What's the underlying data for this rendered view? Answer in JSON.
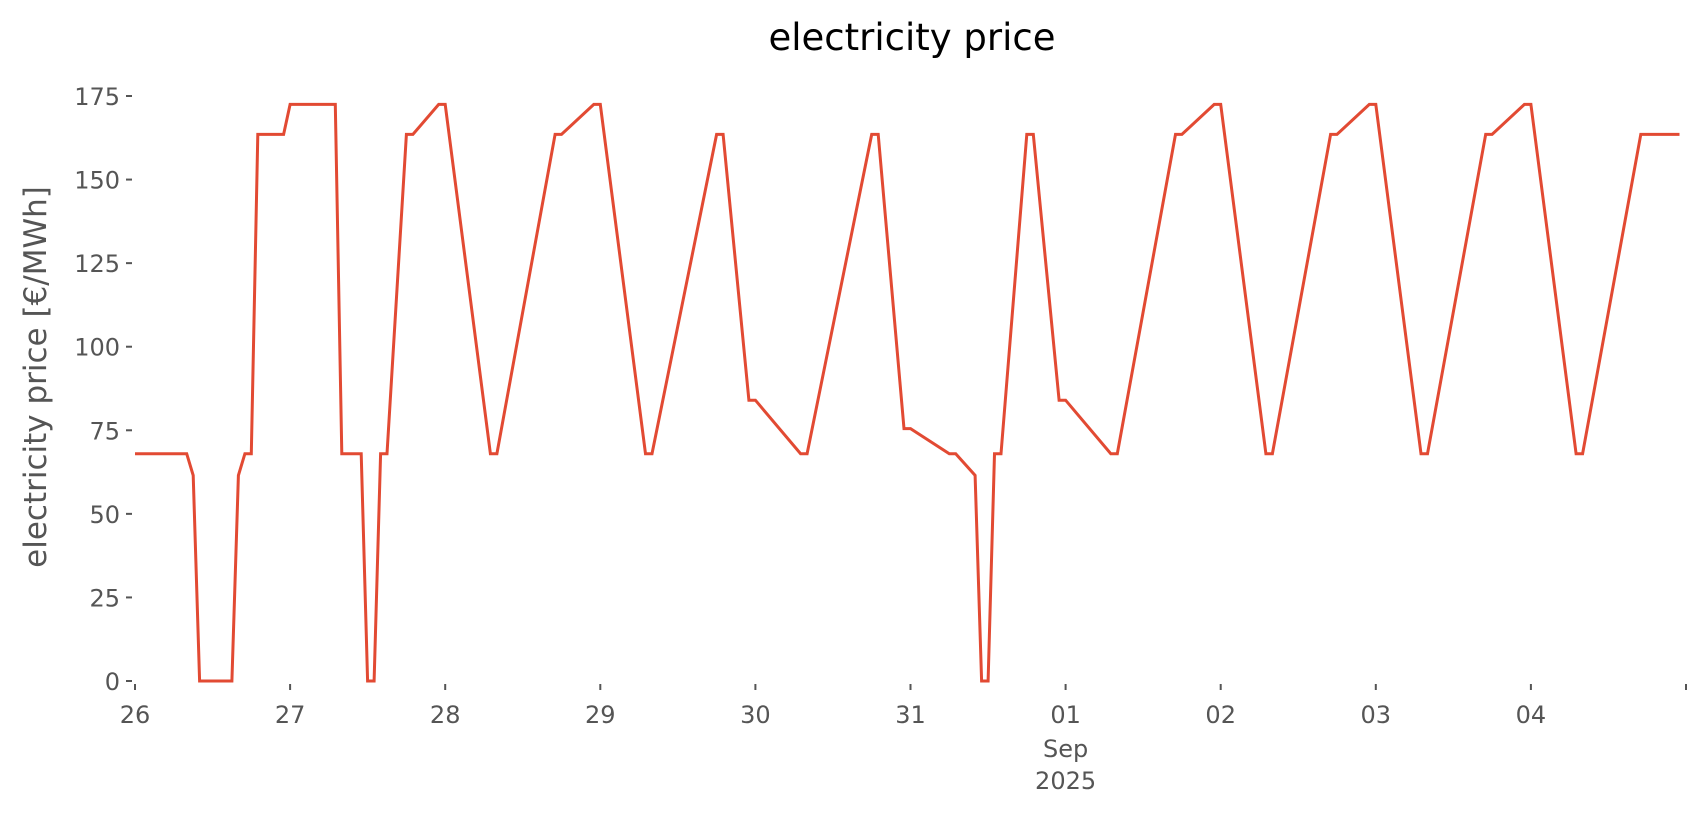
{
  "chart_data": {
    "type": "line",
    "title": "electricity price",
    "xlabel": "",
    "ylabel": "electricity price [€/MWh]",
    "ylim": [
      0,
      175
    ],
    "y_ticks": [
      0,
      25,
      50,
      75,
      100,
      125,
      150,
      175
    ],
    "x_range": [
      "2025-08-26 00:00",
      "2025-09-04 23:00"
    ],
    "x_ticks": [
      {
        "date": "2025-08-26",
        "label": "26"
      },
      {
        "date": "2025-08-27",
        "label": "27"
      },
      {
        "date": "2025-08-28",
        "label": "28"
      },
      {
        "date": "2025-08-29",
        "label": "29"
      },
      {
        "date": "2025-08-30",
        "label": "30"
      },
      {
        "date": "2025-08-31",
        "label": "31"
      },
      {
        "date": "2025-09-01",
        "label": "01",
        "sublabel": [
          "Sep",
          "2025"
        ]
      },
      {
        "date": "2025-09-02",
        "label": "02"
      },
      {
        "date": "2025-09-03",
        "label": "03"
      },
      {
        "date": "2025-09-04",
        "label": "04"
      }
    ],
    "grid": false,
    "line_color": "#e24a33",
    "series": [
      {
        "x": [
          "2025-08-26 00:00",
          "2025-08-26 08:00",
          "2025-08-26 09:00",
          "2025-08-26 10:00",
          "2025-08-26 15:00",
          "2025-08-26 16:00",
          "2025-08-26 17:00",
          "2025-08-26 18:00",
          "2025-08-26 19:00",
          "2025-08-26 23:00",
          "2025-08-27 00:00",
          "2025-08-27 07:00",
          "2025-08-27 08:00",
          "2025-08-27 11:00",
          "2025-08-27 12:00",
          "2025-08-27 13:00",
          "2025-08-27 14:00",
          "2025-08-27 15:00",
          "2025-08-27 18:00",
          "2025-08-27 19:00",
          "2025-08-27 23:00",
          "2025-08-28 00:00",
          "2025-08-28 07:00",
          "2025-08-28 08:00",
          "2025-08-28 17:00",
          "2025-08-28 18:00",
          "2025-08-28 23:00",
          "2025-08-29 00:00",
          "2025-08-29 07:00",
          "2025-08-29 08:00",
          "2025-08-29 18:00",
          "2025-08-29 19:00",
          "2025-08-29 23:00",
          "2025-08-30 00:00",
          "2025-08-30 07:00",
          "2025-08-30 08:00",
          "2025-08-30 18:00",
          "2025-08-30 19:00",
          "2025-08-30 23:00",
          "2025-08-31 00:00",
          "2025-08-31 06:00",
          "2025-08-31 07:00",
          "2025-08-31 10:00",
          "2025-08-31 11:00",
          "2025-08-31 12:00",
          "2025-08-31 13:00",
          "2025-08-31 14:00",
          "2025-08-31 18:00",
          "2025-08-31 19:00",
          "2025-08-31 23:00",
          "2025-09-01 00:00",
          "2025-09-01 07:00",
          "2025-09-01 08:00",
          "2025-09-01 17:00",
          "2025-09-01 18:00",
          "2025-09-01 23:00",
          "2025-09-02 00:00",
          "2025-09-02 07:00",
          "2025-09-02 08:00",
          "2025-09-02 17:00",
          "2025-09-02 18:00",
          "2025-09-02 23:00",
          "2025-09-03 00:00",
          "2025-09-03 07:00",
          "2025-09-03 08:00",
          "2025-09-03 17:00",
          "2025-09-03 18:00",
          "2025-09-03 23:00",
          "2025-09-04 00:00",
          "2025-09-04 07:00",
          "2025-09-04 08:00",
          "2025-09-04 17:00",
          "2025-09-04 18:00",
          "2025-09-04 23:00"
        ],
        "y": [
          68,
          68,
          61.5,
          0,
          0,
          61.5,
          68,
          68,
          163.5,
          163.5,
          172.5,
          172.5,
          68,
          68,
          0,
          0,
          68,
          68,
          163.5,
          163.5,
          172.5,
          172.5,
          68,
          68,
          163.5,
          163.5,
          172.5,
          172.5,
          68,
          68,
          163.5,
          163.5,
          84,
          84,
          68,
          68,
          163.5,
          163.5,
          75.5,
          75.5,
          68,
          68,
          61.5,
          0,
          0,
          68,
          68,
          163.5,
          163.5,
          84,
          84,
          68,
          68,
          163.5,
          163.5,
          172.5,
          172.5,
          68,
          68,
          163.5,
          163.5,
          172.5,
          172.5,
          68,
          68,
          163.5,
          163.5,
          172.5,
          172.5,
          68,
          68,
          163.5,
          163.5,
          163.5
        ]
      }
    ]
  }
}
